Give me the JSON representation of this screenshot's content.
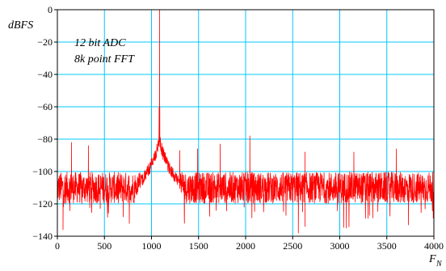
{
  "chart_data": {
    "type": "line",
    "ylabel": "dBFS",
    "xlabel": "F",
    "xlabel_sub": "N",
    "annotations": [
      "12 bit ADC",
      "8k point FFT"
    ],
    "xlim": [
      0,
      4000
    ],
    "ylim": [
      -140,
      0
    ],
    "x_ticks": [
      0,
      500,
      1000,
      1500,
      2000,
      2500,
      3000,
      3500,
      4000
    ],
    "y_ticks": [
      0,
      -20,
      -40,
      -60,
      -80,
      -100,
      -120,
      -140
    ],
    "grid": true,
    "colors": {
      "grid": "#00c8ff",
      "series": "#ff0000"
    },
    "series": [
      {
        "fundamental_x": 1085,
        "fundamental_y": 0,
        "noise_floor_db": -110,
        "noise_spread_db": 12,
        "spurs": [
          {
            "x": 150,
            "y": -82
          },
          {
            "x": 330,
            "y": -84
          },
          {
            "x": 1300,
            "y": -87
          },
          {
            "x": 1490,
            "y": -86
          },
          {
            "x": 1730,
            "y": -83
          },
          {
            "x": 2045,
            "y": -78
          },
          {
            "x": 2630,
            "y": -88
          },
          {
            "x": 3150,
            "y": -88
          },
          {
            "x": 3600,
            "y": -86
          }
        ],
        "deep_nulls": [
          {
            "x": 60,
            "y": -136
          },
          {
            "x": 700,
            "y": -128
          },
          {
            "x": 1350,
            "y": -132
          },
          {
            "x": 2560,
            "y": -138
          },
          {
            "x": 2630,
            "y": -134
          },
          {
            "x": 3070,
            "y": -135
          },
          {
            "x": 3300,
            "y": -129
          },
          {
            "x": 3730,
            "y": -133
          }
        ]
      }
    ]
  }
}
